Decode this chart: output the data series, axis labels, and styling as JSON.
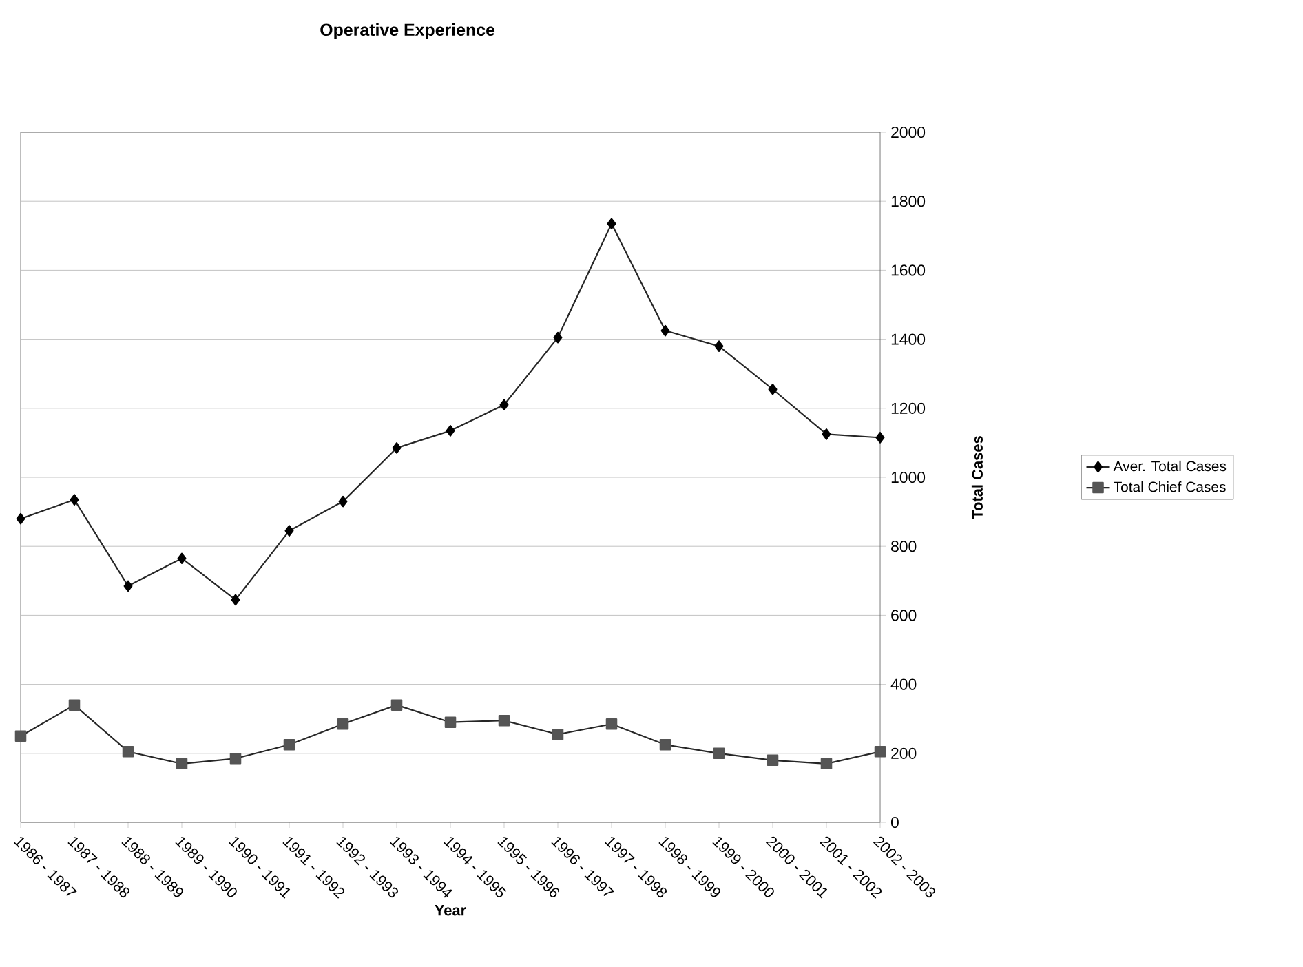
{
  "chart_data": {
    "type": "line",
    "title": "Operative Experience",
    "xlabel": "Year",
    "ylabel": "Total Cases",
    "categories": [
      "1986 - 1987",
      "1987 - 1988",
      "1988 - 1989",
      "1989 - 1990",
      "1990 - 1991",
      "1991 - 1992",
      "1992 - 1993",
      "1993 - 1994",
      "1994 - 1995",
      "1995 - 1996",
      "1996 - 1997",
      "1997 - 1998",
      "1998 - 1999",
      "1999 - 2000",
      "2000 - 2001",
      "2001 - 2002",
      "2002 - 2003"
    ],
    "series": [
      {
        "name": "Aver. Total Cases",
        "color": "#000000",
        "marker": "diamond",
        "values": [
          880,
          935,
          685,
          765,
          645,
          845,
          930,
          1085,
          1135,
          1210,
          1405,
          1735,
          1425,
          1380,
          1255,
          1125,
          1115
        ]
      },
      {
        "name": "Total Chief Cases",
        "color": "#555555",
        "marker": "square",
        "values": [
          250,
          340,
          205,
          170,
          185,
          225,
          285,
          340,
          290,
          295,
          255,
          285,
          225,
          200,
          180,
          170,
          205
        ]
      }
    ],
    "ylim": [
      0,
      2000
    ],
    "yticks": [
      0,
      200,
      400,
      600,
      800,
      1000,
      1200,
      1400,
      1600,
      1800,
      2000
    ],
    "grid": "y",
    "legend": "right"
  }
}
